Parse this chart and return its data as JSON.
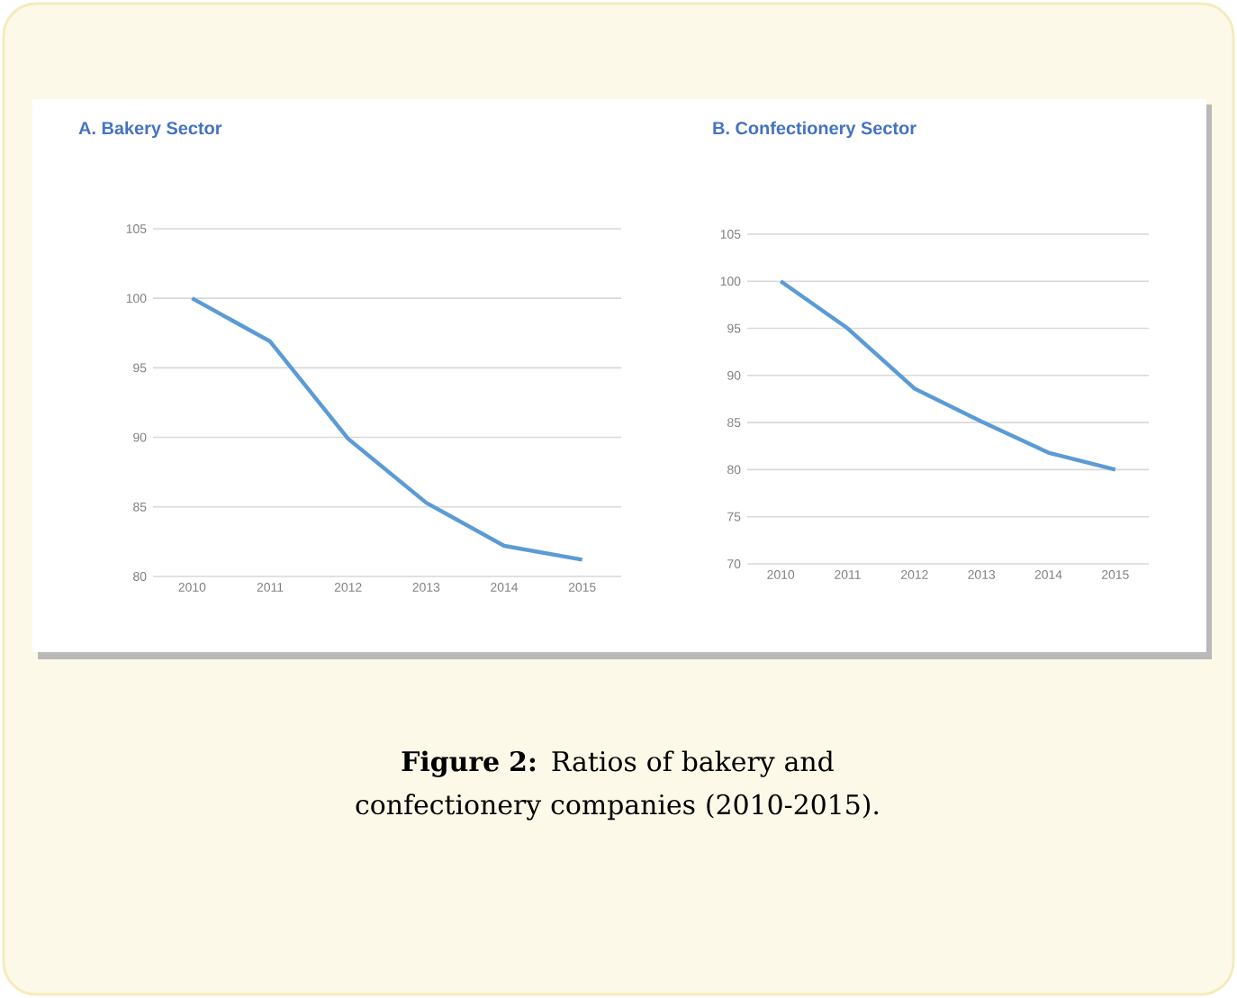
{
  "chart_data": [
    {
      "type": "line",
      "title": "A. Bakery Sector",
      "categories": [
        "2010",
        "2011",
        "2012",
        "2013",
        "2014",
        "2015"
      ],
      "series": [
        {
          "color": "#5b9bd5",
          "values": [
            100,
            96.9,
            89.9,
            85.3,
            82.2,
            81.2
          ]
        }
      ],
      "ylim": [
        80,
        105
      ],
      "yticks": [
        80,
        85,
        90,
        95,
        100,
        105
      ],
      "grid": "y",
      "marker": "none",
      "annotations": [
        "**Figure 2:** Ratios of bakery and confectionery companies (2010-2015)."
      ]
    },
    {
      "type": "line",
      "title": "B. Confectionery Sector",
      "categories": [
        "2010",
        "2011",
        "2012",
        "2013",
        "2014",
        "2015"
      ],
      "series": [
        {
          "color": "#5b9bd5",
          "values": [
            100,
            95,
            88.6,
            85.1,
            81.8,
            80
          ]
        }
      ],
      "ylim": [
        70,
        105
      ],
      "yticks": [
        70,
        75,
        80,
        85,
        90,
        95,
        100,
        105
      ],
      "grid": "y",
      "marker": "none"
    }
  ]
}
